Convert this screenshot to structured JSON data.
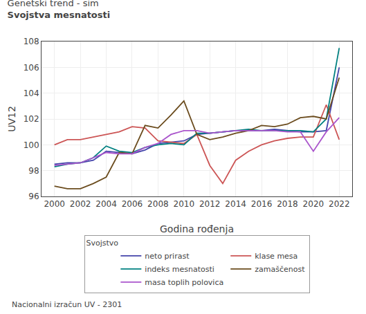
{
  "chart_data": {
    "type": "line",
    "title": "Genetski trend - sim",
    "subtitle": "Svojstva mesnatosti",
    "xlabel": "Godina rođenja",
    "ylabel": "UV12",
    "legend_title": "Svojstvo",
    "annotations": [
      "Nacionalni izračun UV - 2301"
    ],
    "x": [
      2000,
      2001,
      2002,
      2003,
      2004,
      2005,
      2006,
      2007,
      2008,
      2009,
      2010,
      2011,
      2012,
      2013,
      2014,
      2015,
      2016,
      2017,
      2018,
      2019,
      2020,
      2021,
      2022
    ],
    "series": [
      {
        "name": "neto prirast",
        "color": "#4444aa",
        "values": [
          98.5,
          98.6,
          98.6,
          98.8,
          99.5,
          99.4,
          99.3,
          99.6,
          100.1,
          100.2,
          100.3,
          100.8,
          100.9,
          101.0,
          101.1,
          101.1,
          101.1,
          101.2,
          101.1,
          101.0,
          101.0,
          101.1,
          106.0
        ]
      },
      {
        "name": "klase mesa",
        "color": "#cc5555",
        "values": [
          100.0,
          100.4,
          100.4,
          100.6,
          100.8,
          101.0,
          101.4,
          101.3,
          100.3,
          100.2,
          100.1,
          100.8,
          98.4,
          97.0,
          98.8,
          99.5,
          100.0,
          100.3,
          100.5,
          100.6,
          100.6,
          103.1,
          100.4
        ]
      },
      {
        "name": "indeks mesnatosti",
        "color": "#008080",
        "values": [
          98.3,
          98.5,
          98.6,
          99.0,
          99.9,
          99.5,
          99.4,
          99.8,
          100.0,
          100.1,
          100.0,
          100.9,
          100.9,
          101.0,
          101.1,
          101.2,
          101.1,
          101.1,
          101.1,
          101.1,
          101.0,
          102.0,
          107.5
        ]
      },
      {
        "name": "zamaščenost",
        "color": "#6b4c1e",
        "values": [
          96.8,
          96.6,
          96.6,
          97.0,
          97.5,
          99.4,
          99.3,
          101.5,
          101.3,
          102.3,
          103.4,
          100.8,
          100.4,
          100.6,
          100.9,
          101.1,
          101.5,
          101.4,
          101.6,
          102.1,
          102.2,
          102.0,
          105.2
        ]
      },
      {
        "name": "masa toplih polovica",
        "color": "#aa55cc",
        "values": [
          98.4,
          98.5,
          98.6,
          99.0,
          99.4,
          99.3,
          99.3,
          99.8,
          100.1,
          100.8,
          101.1,
          101.1,
          100.9,
          101.0,
          101.1,
          101.1,
          101.1,
          101.1,
          101.0,
          101.0,
          99.5,
          101.0,
          102.1
        ]
      }
    ],
    "xlim": [
      1999,
      2023
    ],
    "ylim": [
      96,
      108
    ],
    "xticks": [
      2000,
      2002,
      2004,
      2006,
      2008,
      2010,
      2012,
      2014,
      2016,
      2018,
      2020,
      2022
    ],
    "yticks": [
      96,
      98,
      100,
      102,
      104,
      106,
      108
    ],
    "grid": true,
    "legend": "bottom"
  }
}
